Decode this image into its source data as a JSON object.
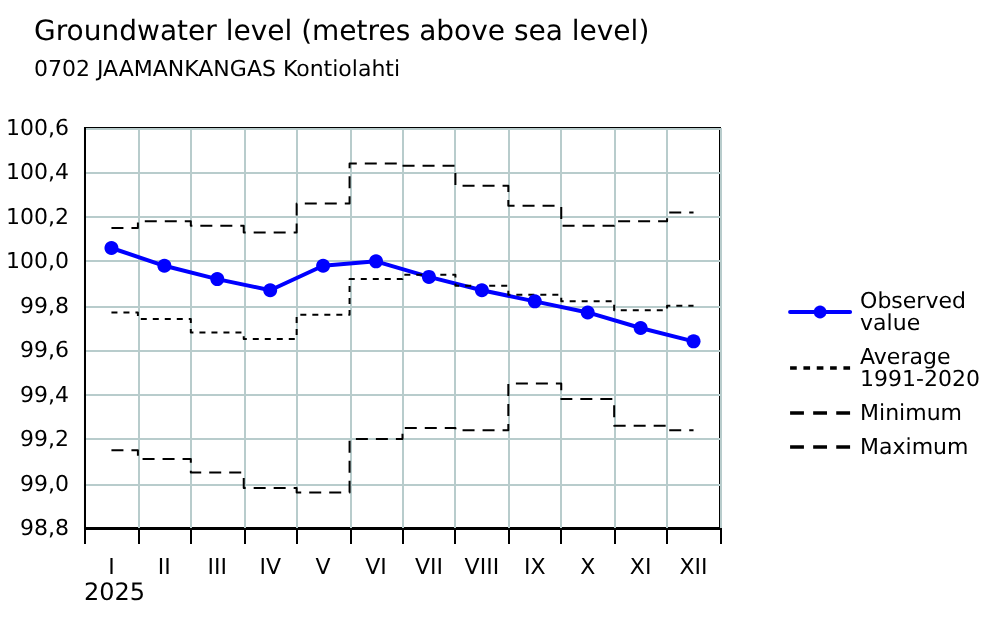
{
  "chart_data": {
    "type": "line",
    "title": "Groundwater level (metres above sea level)",
    "subtitle": "0702 JAAMANKANGAS Kontiolahti",
    "categories": [
      "I",
      "II",
      "III",
      "IV",
      "V",
      "VI",
      "VII",
      "VIII",
      "IX",
      "X",
      "XI",
      "XII"
    ],
    "annotations": [
      "2025"
    ],
    "series": [
      {
        "name": "Observed value",
        "color": "#0000ff",
        "values": [
          100.06,
          99.98,
          99.92,
          99.87,
          99.98,
          100.0,
          99.93,
          99.87,
          99.82,
          99.77,
          99.7,
          99.64
        ]
      },
      {
        "name": "Average 1991-2020",
        "type": "step",
        "color": "#000000",
        "line_style": "dotted",
        "marker": "none",
        "values": [
          99.77,
          99.74,
          99.68,
          99.65,
          99.76,
          99.92,
          99.94,
          99.89,
          99.85,
          99.82,
          99.78,
          99.8
        ]
      },
      {
        "name": "Minimum",
        "type": "step",
        "color": "#000000",
        "line_style": "dashed",
        "marker": "none",
        "values": [
          99.15,
          99.11,
          99.05,
          98.98,
          98.96,
          99.2,
          99.25,
          99.24,
          99.45,
          99.38,
          99.26,
          99.24
        ]
      },
      {
        "name": "Maximum",
        "type": "step",
        "color": "#000000",
        "line_style": "dashed",
        "marker": "none",
        "values": [
          100.15,
          100.18,
          100.16,
          100.13,
          100.26,
          100.44,
          100.43,
          100.34,
          100.25,
          100.16,
          100.18,
          100.22
        ]
      }
    ],
    "ylim": [
      98.8,
      100.6
    ],
    "yticks": [
      {
        "value": 98.8,
        "label": "98,8"
      },
      {
        "value": 99.0,
        "label": "99,0"
      },
      {
        "value": 99.2,
        "label": "99,2"
      },
      {
        "value": 99.4,
        "label": "99,4"
      },
      {
        "value": 99.6,
        "label": "99,6"
      },
      {
        "value": 99.8,
        "label": "99,8"
      },
      {
        "value": 100.0,
        "label": "100,0"
      },
      {
        "value": 100.2,
        "label": "100,2"
      },
      {
        "value": 100.4,
        "label": "100,4"
      },
      {
        "value": 100.6,
        "label": "100,6"
      }
    ],
    "grid": true,
    "legend": "right",
    "marker": "circle",
    "line_style": "solid"
  }
}
